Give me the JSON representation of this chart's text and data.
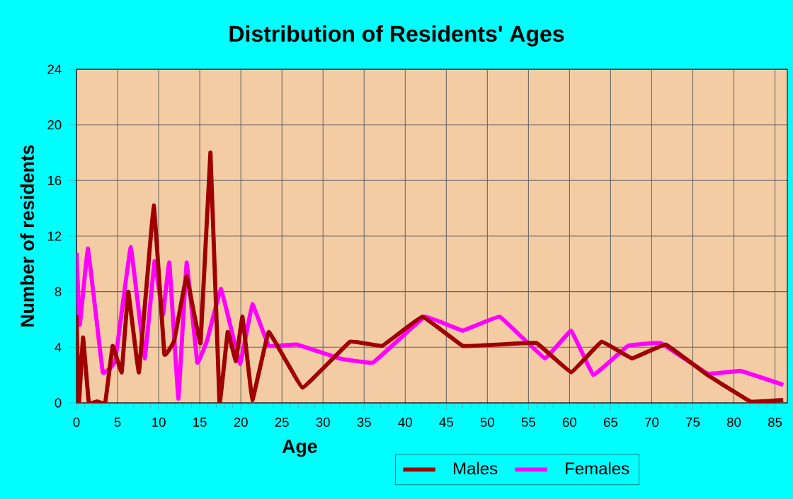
{
  "chart_data": {
    "type": "line",
    "title": "Distribution of Residents' Ages",
    "xlabel": "Age",
    "ylabel": "Number of residents",
    "xlim": [
      0,
      86.5
    ],
    "xticks": [
      0,
      5,
      10,
      15,
      20,
      25,
      30,
      35,
      40,
      45,
      50,
      55,
      60,
      65,
      70,
      75,
      80,
      85
    ],
    "ylim": [
      0,
      24
    ],
    "yticks": [
      0,
      4,
      8,
      12,
      16,
      20,
      24
    ],
    "grid": true,
    "legend": "bottom",
    "marker": "none",
    "line_style": "solid",
    "series": [
      {
        "name": "Males",
        "color": "#a00000",
        "x": [
          0,
          0.3,
          0.8,
          1.5,
          2.5,
          3.5,
          4.4,
          5.5,
          6.3,
          7.6,
          9.4,
          10.7,
          11.9,
          13.4,
          15.1,
          16.3,
          17.4,
          18.4,
          19.4,
          20.2,
          21.4,
          23.4,
          27.5,
          33.3,
          37.2,
          42.1,
          47,
          51.5,
          56,
          60.2,
          63.9,
          67.6,
          71.7,
          76.8,
          82,
          86
        ],
        "values": [
          6.3,
          0,
          4.7,
          0,
          0.1,
          0,
          4.1,
          2.2,
          8,
          2.2,
          14.2,
          3.5,
          4.5,
          9.1,
          4.3,
          18,
          0,
          5.1,
          3,
          6.2,
          0.2,
          5.1,
          1.1,
          4.4,
          4.1,
          6.2,
          4.1,
          4.2,
          4.3,
          2.2,
          4.4,
          3.2,
          4.2,
          2,
          0.1,
          0.2
        ]
      },
      {
        "name": "Females",
        "color": "#ff00ff",
        "x": [
          0,
          0.4,
          1.4,
          3.2,
          4.7,
          6.6,
          8.3,
          9.5,
          10.5,
          11.3,
          12.4,
          13.4,
          14.7,
          15.9,
          17.6,
          19.9,
          21.4,
          23.4,
          26.8,
          32,
          36.1,
          42.4,
          47,
          51.5,
          57,
          60.2,
          62.9,
          67.1,
          71.1,
          76.8,
          80.8,
          86
        ],
        "values": [
          10.8,
          5.6,
          11.1,
          2.2,
          3,
          11.2,
          3.2,
          10.2,
          6.3,
          10.1,
          0.3,
          10.1,
          2.9,
          4.5,
          8.2,
          2.8,
          7.1,
          4.1,
          4.2,
          3.2,
          2.9,
          6.2,
          5.2,
          6.2,
          3.2,
          5.2,
          2,
          4.1,
          4.3,
          2.1,
          2.3,
          1.3
        ]
      }
    ]
  }
}
